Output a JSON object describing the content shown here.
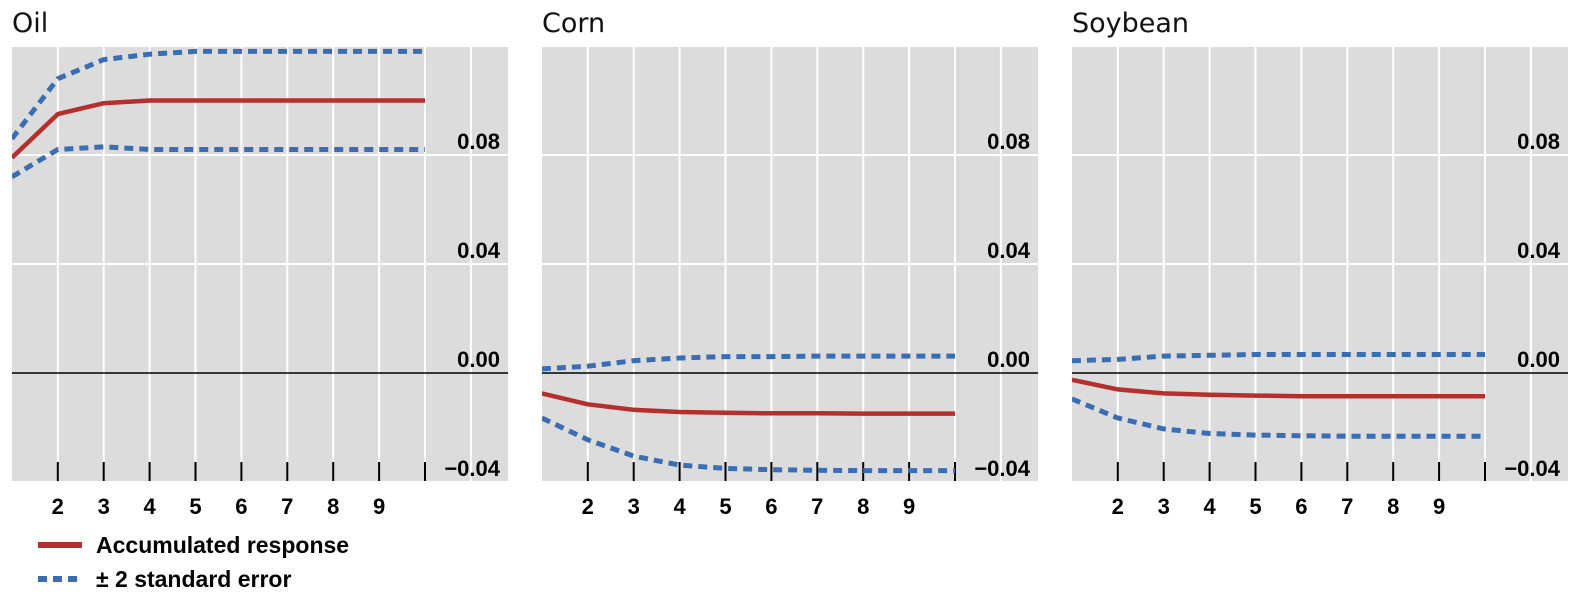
{
  "colors": {
    "accumulated_response": "#b5302d",
    "standard_error": "#3b6db3",
    "plot_background": "#dcdcdc",
    "gridline": "#ffffff",
    "zero_line": "#000000"
  },
  "legend": {
    "response_label": "Accumulated response",
    "error_label": "± 2 standard error"
  },
  "chart_data": [
    {
      "type": "line",
      "title": "Oil",
      "x": [
        1,
        2,
        3,
        4,
        5,
        6,
        7,
        8,
        9,
        10
      ],
      "x_tick_labels": [
        "2",
        "3",
        "4",
        "5",
        "6",
        "7",
        "8",
        "9"
      ],
      "y_tick_labels": [
        "0.08",
        "0.04",
        "0.00",
        "−0.04"
      ],
      "ylim": [
        -0.04,
        0.12
      ],
      "grid": true,
      "series": [
        {
          "name": "Accumulated response",
          "style": "solid",
          "values": [
            0.079,
            0.095,
            0.099,
            0.1,
            0.1,
            0.1,
            0.1,
            0.1,
            0.1,
            0.1
          ]
        },
        {
          "name": "± 2 standard error",
          "style": "dashed",
          "values": [
            0.086,
            0.108,
            0.115,
            0.117,
            0.118,
            0.118,
            0.118,
            0.118,
            0.118,
            0.118
          ]
        },
        {
          "name": "± 2 standard error",
          "style": "dashed",
          "values": [
            0.072,
            0.082,
            0.083,
            0.082,
            0.082,
            0.082,
            0.082,
            0.082,
            0.082,
            0.082
          ]
        }
      ]
    },
    {
      "type": "line",
      "title": "Corn",
      "x": [
        1,
        2,
        3,
        4,
        5,
        6,
        7,
        8,
        9,
        10
      ],
      "x_tick_labels": [
        "2",
        "3",
        "4",
        "5",
        "6",
        "7",
        "8",
        "9"
      ],
      "y_tick_labels": [
        "0.08",
        "0.04",
        "0.00",
        "−0.04"
      ],
      "ylim": [
        -0.04,
        0.12
      ],
      "grid": true,
      "series": [
        {
          "name": "Accumulated response",
          "style": "solid",
          "values": [
            -0.0075,
            -0.0115,
            -0.0135,
            -0.0143,
            -0.0146,
            -0.0148,
            -0.0148,
            -0.0149,
            -0.0149,
            -0.0149
          ]
        },
        {
          "name": "± 2 standard error",
          "style": "dashed",
          "values": [
            0.0015,
            0.0025,
            0.0045,
            0.0055,
            0.006,
            0.006,
            0.0062,
            0.0062,
            0.0062,
            0.0062
          ]
        },
        {
          "name": "± 2 standard error",
          "style": "dashed",
          "values": [
            -0.0165,
            -0.0245,
            -0.0305,
            -0.0338,
            -0.035,
            -0.0355,
            -0.0357,
            -0.0358,
            -0.0358,
            -0.0358
          ]
        }
      ]
    },
    {
      "type": "line",
      "title": "Soybean",
      "x": [
        1,
        2,
        3,
        4,
        5,
        6,
        7,
        8,
        9,
        10
      ],
      "x_tick_labels": [
        "2",
        "3",
        "4",
        "5",
        "6",
        "7",
        "8",
        "9"
      ],
      "y_tick_labels": [
        "0.08",
        "0.04",
        "0.00",
        "−0.04"
      ],
      "ylim": [
        -0.04,
        0.12
      ],
      "grid": true,
      "series": [
        {
          "name": "Accumulated response",
          "style": "solid",
          "values": [
            -0.0025,
            -0.006,
            -0.0075,
            -0.008,
            -0.0083,
            -0.0085,
            -0.0085,
            -0.0085,
            -0.0085,
            -0.0085
          ]
        },
        {
          "name": "± 2 standard error",
          "style": "dashed",
          "values": [
            0.0045,
            0.005,
            0.0062,
            0.0065,
            0.0068,
            0.0068,
            0.0068,
            0.0068,
            0.0068,
            0.0068
          ]
        },
        {
          "name": "± 2 standard error",
          "style": "dashed",
          "values": [
            -0.0095,
            -0.0165,
            -0.0205,
            -0.0222,
            -0.0228,
            -0.023,
            -0.0232,
            -0.0232,
            -0.0232,
            -0.0232
          ]
        }
      ]
    }
  ]
}
